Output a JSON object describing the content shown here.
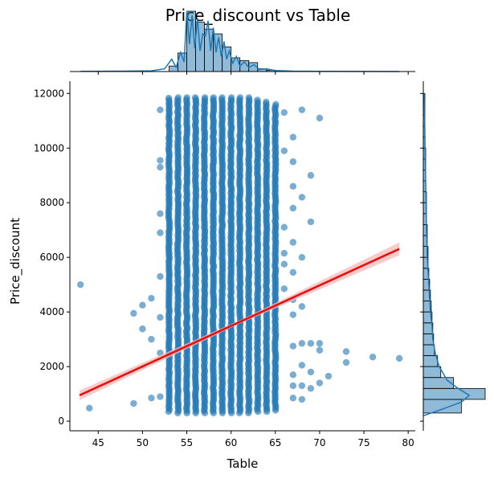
{
  "chart_data": {
    "type": "scatter",
    "title": "Price_discount vs Table",
    "xlabel": "Table",
    "ylabel": "Price_discount",
    "xlim": [
      41.8,
      80.8
    ],
    "ylim": [
      -350,
      12450
    ],
    "xticks": [
      45,
      50,
      55,
      60,
      65,
      70,
      75,
      80
    ],
    "yticks": [
      0,
      2000,
      4000,
      6000,
      8000,
      10000,
      12000
    ],
    "grid": false,
    "point_color": "#1f77b4",
    "regression": {
      "color": "#e8110f",
      "band_color": "#f7b8b8",
      "points": [
        [
          42.9,
          950
        ],
        [
          79.0,
          6310
        ]
      ]
    },
    "outliers": [
      [
        43,
        5000
      ],
      [
        44,
        480
      ],
      [
        49,
        3950
      ],
      [
        49,
        650
      ],
      [
        50,
        4250
      ],
      [
        50,
        3380
      ],
      [
        51,
        4500
      ],
      [
        51,
        3000
      ],
      [
        51,
        850
      ],
      [
        52,
        11400
      ],
      [
        52,
        9300
      ],
      [
        52,
        6900
      ],
      [
        52,
        5300
      ],
      [
        52,
        3800
      ],
      [
        52,
        2500
      ],
      [
        52,
        900
      ],
      [
        52,
        7600
      ],
      [
        52,
        9550
      ],
      [
        66,
        11300
      ],
      [
        66,
        9900
      ],
      [
        66,
        7100
      ],
      [
        66,
        6150
      ],
      [
        66,
        5750
      ],
      [
        66,
        4850
      ],
      [
        67,
        10400
      ],
      [
        67,
        9500
      ],
      [
        67,
        8600
      ],
      [
        67,
        7800
      ],
      [
        67,
        6550
      ],
      [
        67,
        5450
      ],
      [
        67,
        4450
      ],
      [
        67,
        3900
      ],
      [
        67,
        2750
      ],
      [
        67,
        1700
      ],
      [
        67,
        1300
      ],
      [
        67,
        850
      ],
      [
        68,
        11400
      ],
      [
        68,
        8200
      ],
      [
        68,
        6000
      ],
      [
        68,
        4200
      ],
      [
        68,
        2850
      ],
      [
        68,
        2050
      ],
      [
        68,
        1300
      ],
      [
        68,
        800
      ],
      [
        69,
        9000
      ],
      [
        69,
        7300
      ],
      [
        69,
        2850
      ],
      [
        69,
        1800
      ],
      [
        69,
        1200
      ],
      [
        70,
        11100
      ],
      [
        70,
        2850
      ],
      [
        70,
        2600
      ],
      [
        70,
        1400
      ],
      [
        71,
        1650
      ],
      [
        73,
        2550
      ],
      [
        73,
        2150
      ],
      [
        76,
        2350
      ],
      [
        79,
        2300
      ]
    ],
    "dense_columns": [
      {
        "x": 53,
        "ymin": 350,
        "ymax": 11850
      },
      {
        "x": 54,
        "ymin": 300,
        "ymax": 11900
      },
      {
        "x": 55,
        "ymin": 300,
        "ymax": 11900
      },
      {
        "x": 56,
        "ymin": 300,
        "ymax": 11900
      },
      {
        "x": 57,
        "ymin": 300,
        "ymax": 11900
      },
      {
        "x": 58,
        "ymin": 300,
        "ymax": 11900
      },
      {
        "x": 59,
        "ymin": 300,
        "ymax": 11900
      },
      {
        "x": 60,
        "ymin": 300,
        "ymax": 11900
      },
      {
        "x": 61,
        "ymin": 300,
        "ymax": 11900
      },
      {
        "x": 62,
        "ymin": 300,
        "ymax": 11850
      },
      {
        "x": 63,
        "ymin": 350,
        "ymax": 11800
      },
      {
        "x": 64,
        "ymin": 350,
        "ymax": 11700
      },
      {
        "x": 65,
        "ymin": 400,
        "ymax": 11600
      }
    ],
    "top_histogram": {
      "bins": [
        {
          "x0": 53,
          "x1": 54,
          "count": 8
        },
        {
          "x0": 54,
          "x1": 55,
          "count": 27
        },
        {
          "x0": 55,
          "x1": 56,
          "count": 88
        },
        {
          "x0": 56,
          "x1": 57,
          "count": 72
        },
        {
          "x0": 57,
          "x1": 58,
          "count": 62
        },
        {
          "x0": 58,
          "x1": 59,
          "count": 55
        },
        {
          "x0": 59,
          "x1": 60,
          "count": 36
        },
        {
          "x0": 60,
          "x1": 61,
          "count": 20
        },
        {
          "x0": 61,
          "x1": 62,
          "count": 16
        },
        {
          "x0": 62,
          "x1": 63,
          "count": 13
        },
        {
          "x0": 63,
          "x1": 64,
          "count": 4
        },
        {
          "x0": 64,
          "x1": 65,
          "count": 2
        },
        {
          "x0": 65,
          "x1": 66,
          "count": 1
        }
      ],
      "kde": [
        [
          43,
          0.3
        ],
        [
          48,
          0.6
        ],
        [
          51,
          1
        ],
        [
          52.5,
          4
        ],
        [
          53.3,
          18
        ],
        [
          53.8,
          6
        ],
        [
          54.3,
          28
        ],
        [
          54.7,
          14
        ],
        [
          55,
          88
        ],
        [
          55.3,
          40
        ],
        [
          55.6,
          82
        ],
        [
          55.9,
          34
        ],
        [
          56.2,
          78
        ],
        [
          56.5,
          30
        ],
        [
          56.8,
          55
        ],
        [
          57.1,
          52
        ],
        [
          57.4,
          74
        ],
        [
          57.7,
          30
        ],
        [
          58,
          64
        ],
        [
          58.3,
          28
        ],
        [
          58.6,
          50
        ],
        [
          58.9,
          22
        ],
        [
          59.2,
          44
        ],
        [
          59.5,
          18
        ],
        [
          59.8,
          30
        ],
        [
          60.2,
          12
        ],
        [
          60.6,
          22
        ],
        [
          61,
          8
        ],
        [
          61.5,
          14
        ],
        [
          62,
          6
        ],
        [
          62.6,
          10
        ],
        [
          63.2,
          3
        ],
        [
          64,
          4
        ],
        [
          65,
          1.5
        ],
        [
          67,
          0.6
        ],
        [
          70,
          0.3
        ],
        [
          75,
          0.1
        ],
        [
          79,
          0.05
        ]
      ]
    },
    "right_histogram": {
      "bins": [
        {
          "y0": 300,
          "y1": 800,
          "count": 48
        },
        {
          "y0": 800,
          "y1": 1200,
          "count": 78
        },
        {
          "y0": 1200,
          "y1": 1600,
          "count": 38
        },
        {
          "y0": 1600,
          "y1": 2000,
          "count": 22
        },
        {
          "y0": 2000,
          "y1": 2400,
          "count": 18
        },
        {
          "y0": 2400,
          "y1": 2800,
          "count": 14
        },
        {
          "y0": 2800,
          "y1": 3200,
          "count": 13
        },
        {
          "y0": 3200,
          "y1": 3600,
          "count": 12
        },
        {
          "y0": 3600,
          "y1": 4000,
          "count": 11
        },
        {
          "y0": 4000,
          "y1": 4400,
          "count": 10
        },
        {
          "y0": 4400,
          "y1": 4800,
          "count": 9
        },
        {
          "y0": 4800,
          "y1": 5200,
          "count": 8
        },
        {
          "y0": 5200,
          "y1": 5600,
          "count": 7
        },
        {
          "y0": 5600,
          "y1": 6000,
          "count": 6
        },
        {
          "y0": 6000,
          "y1": 6400,
          "count": 6
        },
        {
          "y0": 6400,
          "y1": 6800,
          "count": 5
        },
        {
          "y0": 6800,
          "y1": 7200,
          "count": 5
        },
        {
          "y0": 7200,
          "y1": 7600,
          "count": 4
        },
        {
          "y0": 7600,
          "y1": 8000,
          "count": 4
        },
        {
          "y0": 8000,
          "y1": 8400,
          "count": 4
        },
        {
          "y0": 8400,
          "y1": 8800,
          "count": 3
        },
        {
          "y0": 8800,
          "y1": 9200,
          "count": 3
        },
        {
          "y0": 9200,
          "y1": 9600,
          "count": 3
        },
        {
          "y0": 9600,
          "y1": 10000,
          "count": 3
        },
        {
          "y0": 10000,
          "y1": 10400,
          "count": 2
        },
        {
          "y0": 10400,
          "y1": 10800,
          "count": 2
        },
        {
          "y0": 10800,
          "y1": 11200,
          "count": 2
        },
        {
          "y0": 11200,
          "y1": 11600,
          "count": 2
        },
        {
          "y0": 11600,
          "y1": 12000,
          "count": 2
        }
      ],
      "kde": [
        [
          200,
          0
        ],
        [
          400,
          20
        ],
        [
          700,
          48
        ],
        [
          950,
          58
        ],
        [
          1200,
          44
        ],
        [
          1500,
          30
        ],
        [
          2000,
          20
        ],
        [
          2500,
          15
        ],
        [
          3000,
          12
        ],
        [
          3500,
          11
        ],
        [
          4000,
          9
        ],
        [
          5000,
          7
        ],
        [
          6000,
          5
        ],
        [
          7000,
          4
        ],
        [
          8000,
          3.5
        ],
        [
          9000,
          2.8
        ],
        [
          10000,
          2.2
        ],
        [
          11000,
          1.8
        ],
        [
          12000,
          1
        ]
      ]
    }
  }
}
